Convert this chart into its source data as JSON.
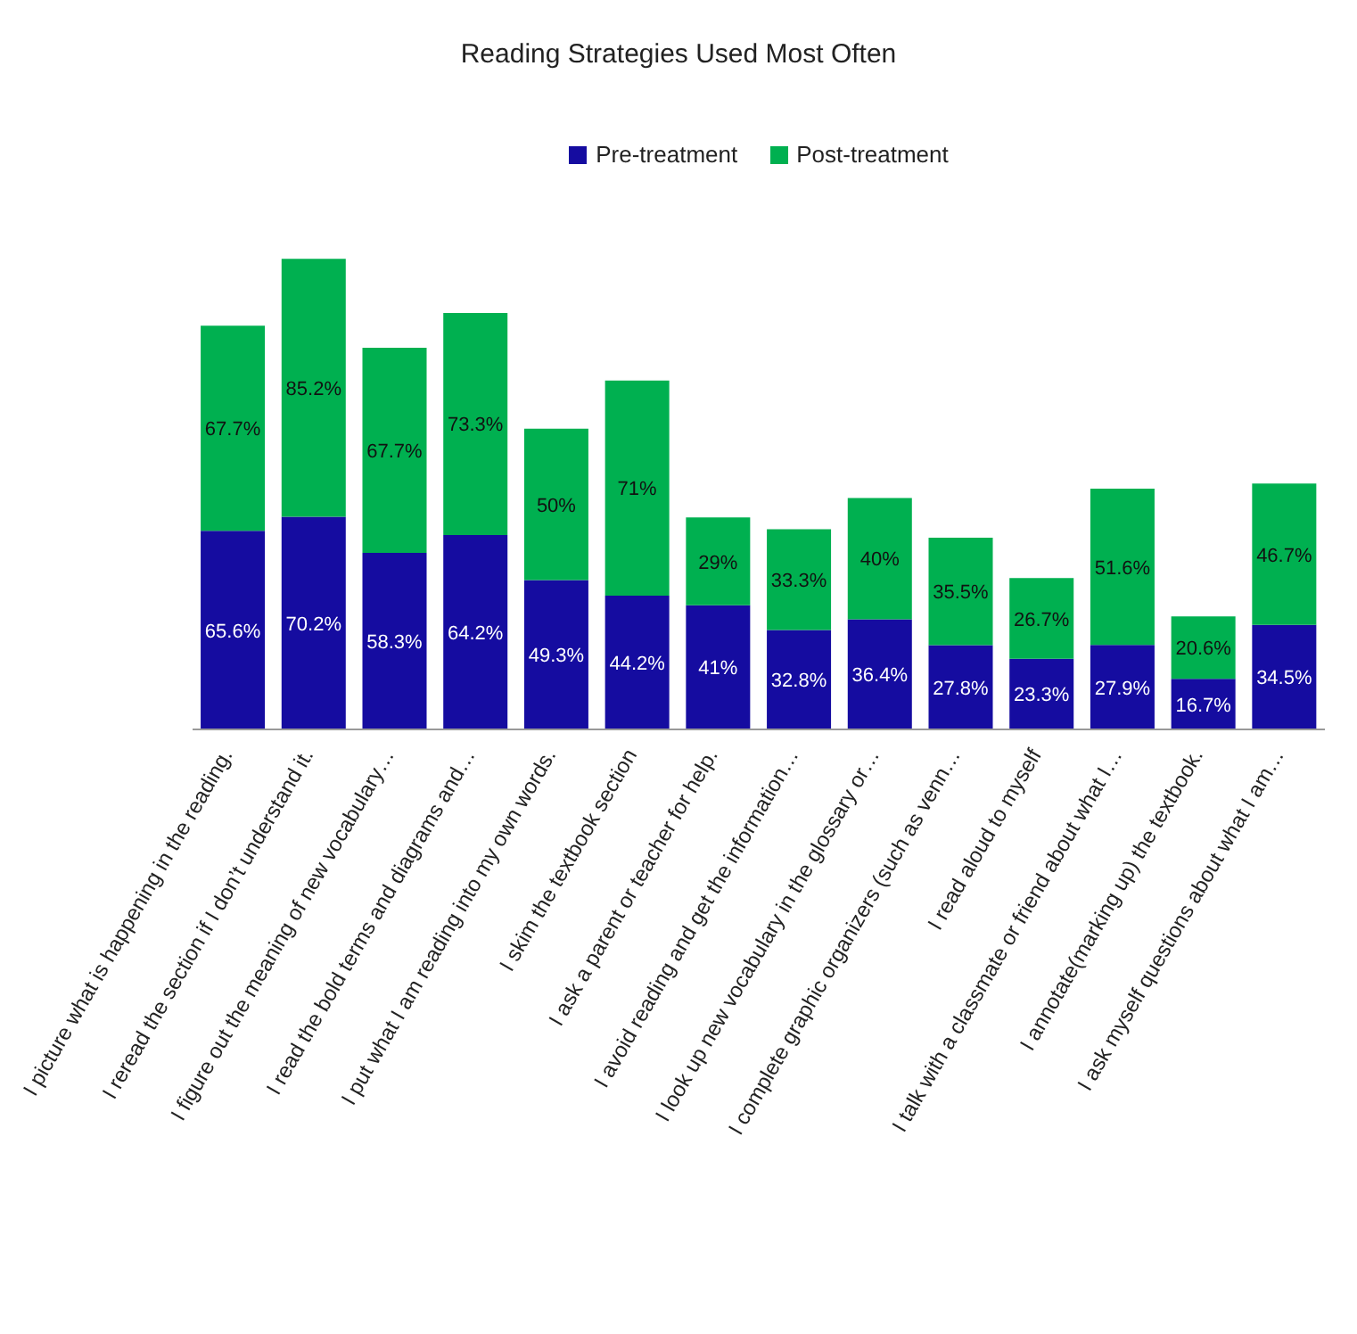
{
  "chart_data": {
    "type": "bar",
    "title": "Reading Strategies Used Most Often",
    "stacked": true,
    "legend": "top",
    "tick_labels": "x",
    "categories": [
      "I picture what is happening in the reading.",
      "I reread the section if I don’t understand it.",
      "I figure out the meaning of new vocabulary…",
      "I read the bold terms and diagrams and…",
      "I put what I am reading into my own words.",
      "I skim the textbook section",
      "I ask a parent or teacher for help.",
      "I avoid reading and get the information…",
      "I look up new vocabulary in the glossary or…",
      "I complete graphic organizers (such as venn…",
      "I read aloud to myself",
      "I talk with a classmate or friend about what I…",
      "I annotate(marking up) the textbook.",
      "I ask myself questions about what I am…"
    ],
    "series": [
      {
        "name": "Pre-treatment",
        "color": "#150ca0",
        "values": [
          65.6,
          70.2,
          58.3,
          64.2,
          49.3,
          44.2,
          41,
          32.8,
          36.4,
          27.8,
          23.3,
          27.9,
          16.7,
          34.5
        ],
        "value_labels": [
          "65.6%",
          "70.2%",
          "58.3%",
          "64.2%",
          "49.3%",
          "44.2%",
          "41%",
          "32.8%",
          "36.4%",
          "27.8%",
          "23.3%",
          "27.9%",
          "16.7%",
          "34.5%"
        ]
      },
      {
        "name": "Post-treatment",
        "color": "#00b050",
        "values": [
          67.7,
          85.2,
          67.7,
          73.3,
          50,
          71,
          29,
          33.3,
          40,
          35.5,
          26.7,
          51.6,
          20.6,
          46.7
        ],
        "value_labels": [
          "67.7%",
          "85.2%",
          "67.7%",
          "73.3%",
          "50%",
          "71%",
          "29%",
          "33.3%",
          "40%",
          "35.5%",
          "26.7%",
          "51.6%",
          "20.6%",
          "46.7%"
        ]
      }
    ]
  }
}
